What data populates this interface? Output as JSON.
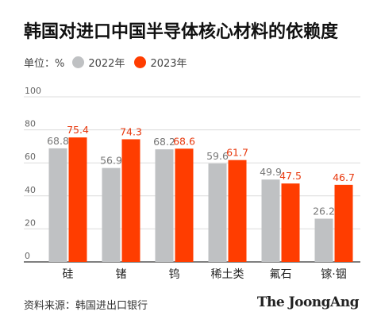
{
  "title": "韩国对进口中国半导体核心材料的依赖度",
  "legend": {
    "unit_label": "单位：%",
    "items": [
      {
        "label": "2022年",
        "color": "#bfc1c3"
      },
      {
        "label": "2023年",
        "color": "#ff3d00"
      }
    ]
  },
  "chart_data": {
    "type": "bar",
    "categories": [
      "硅",
      "锗",
      "钨",
      "稀土类",
      "氟石",
      "镓·铟"
    ],
    "series": [
      {
        "name": "2022年",
        "values": [
          68.8,
          56.9,
          68.2,
          59.6,
          49.9,
          26.2
        ],
        "color": "#bfc1c3",
        "label_color": "#777777"
      },
      {
        "name": "2023年",
        "values": [
          75.4,
          74.3,
          68.6,
          61.7,
          47.5,
          46.7
        ],
        "color": "#ff3d00",
        "label_color": "#e8380d"
      }
    ],
    "ylim": [
      0,
      100
    ],
    "yticks": [
      "0",
      "20",
      "40",
      "60",
      "80",
      "100"
    ],
    "grid": true
  },
  "source": "资料来源：韩国进出口银行",
  "brand": "The JoongAng"
}
